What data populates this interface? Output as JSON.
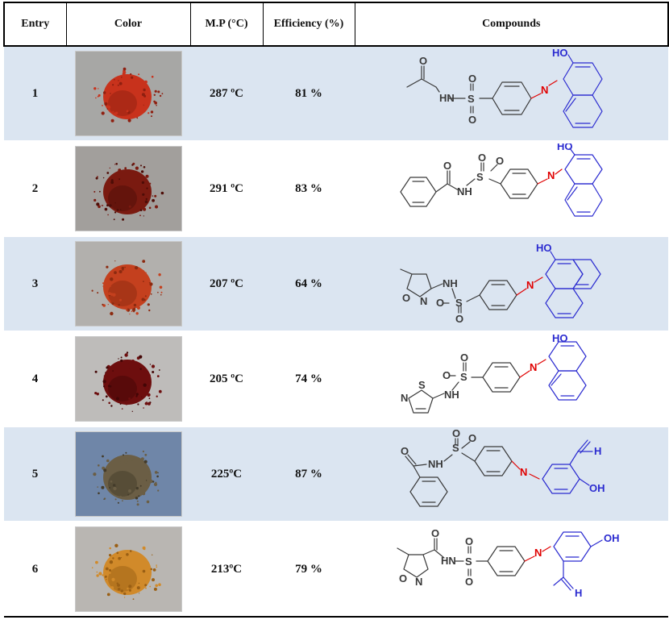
{
  "headers": {
    "entry": "Entry",
    "color": "Color",
    "mp": "M.P (°C)",
    "efficiency": "Efficiency (%)",
    "compounds": "Compounds"
  },
  "colors": {
    "row_shade": "#dbe5f1",
    "backbone": "#3a3a3a",
    "azo": "#e00000",
    "naphthol": "#2b2bd0"
  },
  "labels": {
    "ho": "HO",
    "oh": "OH",
    "hn": "HN",
    "nh": "NH",
    "n": "N",
    "s": "S",
    "o": "O",
    "h": "H"
  },
  "rows": [
    {
      "entry": "1",
      "mp": "287 ºC",
      "efficiency": "81 %",
      "powder": {
        "bg": "#a7a7a5",
        "fill": "#c8321c",
        "dark": "#8f1f10"
      }
    },
    {
      "entry": "2",
      "mp": "291 ºC",
      "efficiency": "83 %",
      "powder": {
        "bg": "#a29f9c",
        "fill": "#7a1a10",
        "dark": "#4e0d07"
      }
    },
    {
      "entry": "3",
      "mp": "207 ºC",
      "efficiency": "64 %",
      "powder": {
        "bg": "#b2b0ad",
        "fill": "#c4401e",
        "dark": "#8c2a10"
      }
    },
    {
      "entry": "4",
      "mp": "205 ºC",
      "efficiency": "74 %",
      "powder": {
        "bg": "#bebcba",
        "fill": "#6d0e0e",
        "dark": "#430606"
      }
    },
    {
      "entry": "5",
      "mp": "225ºC",
      "efficiency": "87 %",
      "powder": {
        "bg": "#6f86a8",
        "fill": "#6b5e45",
        "dark": "#433b2a"
      }
    },
    {
      "entry": "6",
      "mp": "213ºC",
      "efficiency": "79 %",
      "powder": {
        "bg": "#b9b6b2",
        "fill": "#d18a2a",
        "dark": "#9a5f14"
      }
    }
  ]
}
